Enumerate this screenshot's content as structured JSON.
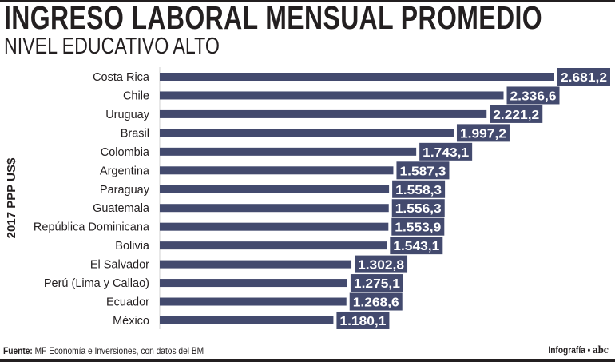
{
  "title": "INGRESO LABORAL MENSUAL PROMEDIO",
  "subtitle": "NIVEL EDUCATIVO ALTO",
  "footer": {
    "source_label": "Fuente:",
    "source_text": "MF Economía e Inversiones, con datos del BM",
    "credit": "Infografía •",
    "logo_text": "abc"
  },
  "chart_data": {
    "type": "bar",
    "orientation": "horizontal",
    "ylabel": "2017 PPP US$",
    "categories": [
      "Costa Rica",
      "Chile",
      "Uruguay",
      "Brasil",
      "Colombia",
      "Argentina",
      "Paraguay",
      "Guatemala",
      "República Dominicana",
      "Bolivia",
      "El Salvador",
      "Perú (Lima y Callao)",
      "Ecuador",
      "México"
    ],
    "values": [
      2681.2,
      2336.6,
      2221.2,
      1997.2,
      1743.1,
      1587.3,
      1558.3,
      1556.3,
      1553.9,
      1543.1,
      1302.8,
      1275.1,
      1268.6,
      1180.1
    ],
    "value_labels": [
      "2.681,2",
      "2.336,6",
      "2.221,2",
      "1.997,2",
      "1.743,1",
      "1.587,3",
      "1.558,3",
      "1.556,3",
      "1.553,9",
      "1.543,1",
      "1.302,8",
      "1.275,1",
      "1.268,6",
      "1.180,1"
    ],
    "bar_color": "#434a6e",
    "grid": false
  }
}
